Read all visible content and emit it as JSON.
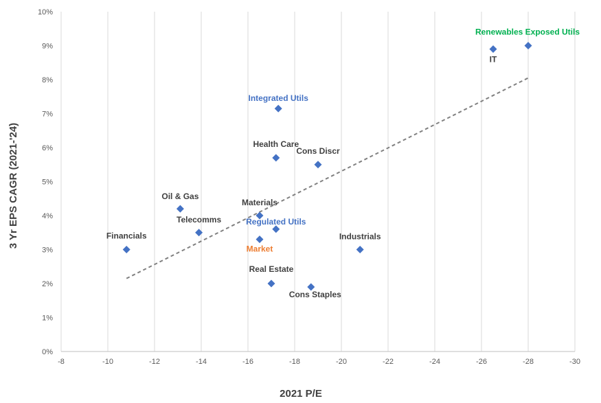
{
  "chart_data": {
    "type": "scatter",
    "title": "",
    "xlabel": "2021 P/E",
    "ylabel": "3 Yr EPS CAGR (2021-'24)",
    "xlim": [
      -8,
      -30
    ],
    "ylim": [
      0,
      10
    ],
    "x_ticks": [
      "-8",
      "-10",
      "-12",
      "-14",
      "-16",
      "-18",
      "-20",
      "-22",
      "-24",
      "-26",
      "-28",
      "-30"
    ],
    "y_ticks": [
      "0%",
      "1%",
      "2%",
      "3%",
      "4%",
      "5%",
      "6%",
      "7%",
      "8%",
      "9%",
      "10%"
    ],
    "grid": "vertical",
    "marker_color": "#4472C4",
    "trendline": {
      "style": "dashed",
      "color": "#808080",
      "x": [
        -10.8,
        -28.0
      ],
      "y": [
        2.15,
        8.05
      ]
    },
    "points": [
      {
        "name": "Financials",
        "x": -10.8,
        "y": 3.0,
        "label_color": "#404040"
      },
      {
        "name": "Oil & Gas",
        "x": -13.1,
        "y": 4.2,
        "label_color": "#404040"
      },
      {
        "name": "Telecomms",
        "x": -13.9,
        "y": 3.5,
        "label_color": "#404040"
      },
      {
        "name": "Materials",
        "x": -16.5,
        "y": 4.0,
        "label_color": "#404040"
      },
      {
        "name": "Market",
        "x": -16.5,
        "y": 3.3,
        "label_color": "#ED7D31"
      },
      {
        "name": "Regulated Utils",
        "x": -17.2,
        "y": 3.6,
        "label_color": "#4472C4"
      },
      {
        "name": "Real Estate",
        "x": -17.0,
        "y": 2.0,
        "label_color": "#404040"
      },
      {
        "name": "Cons Staples",
        "x": -18.7,
        "y": 1.9,
        "label_color": "#404040"
      },
      {
        "name": "Health Care",
        "x": -17.2,
        "y": 5.7,
        "label_color": "#404040"
      },
      {
        "name": "Cons Discr",
        "x": -19.0,
        "y": 5.5,
        "label_color": "#404040"
      },
      {
        "name": "Integrated Utils",
        "x": -17.3,
        "y": 7.15,
        "label_color": "#4472C4"
      },
      {
        "name": "Industrials",
        "x": -20.8,
        "y": 3.0,
        "label_color": "#404040"
      },
      {
        "name": "IT",
        "x": -26.5,
        "y": 8.9,
        "label_color": "#404040"
      },
      {
        "name": "Renewables Exposed Utils",
        "x": -28.0,
        "y": 9.0,
        "label_color": "#00B050"
      }
    ]
  }
}
